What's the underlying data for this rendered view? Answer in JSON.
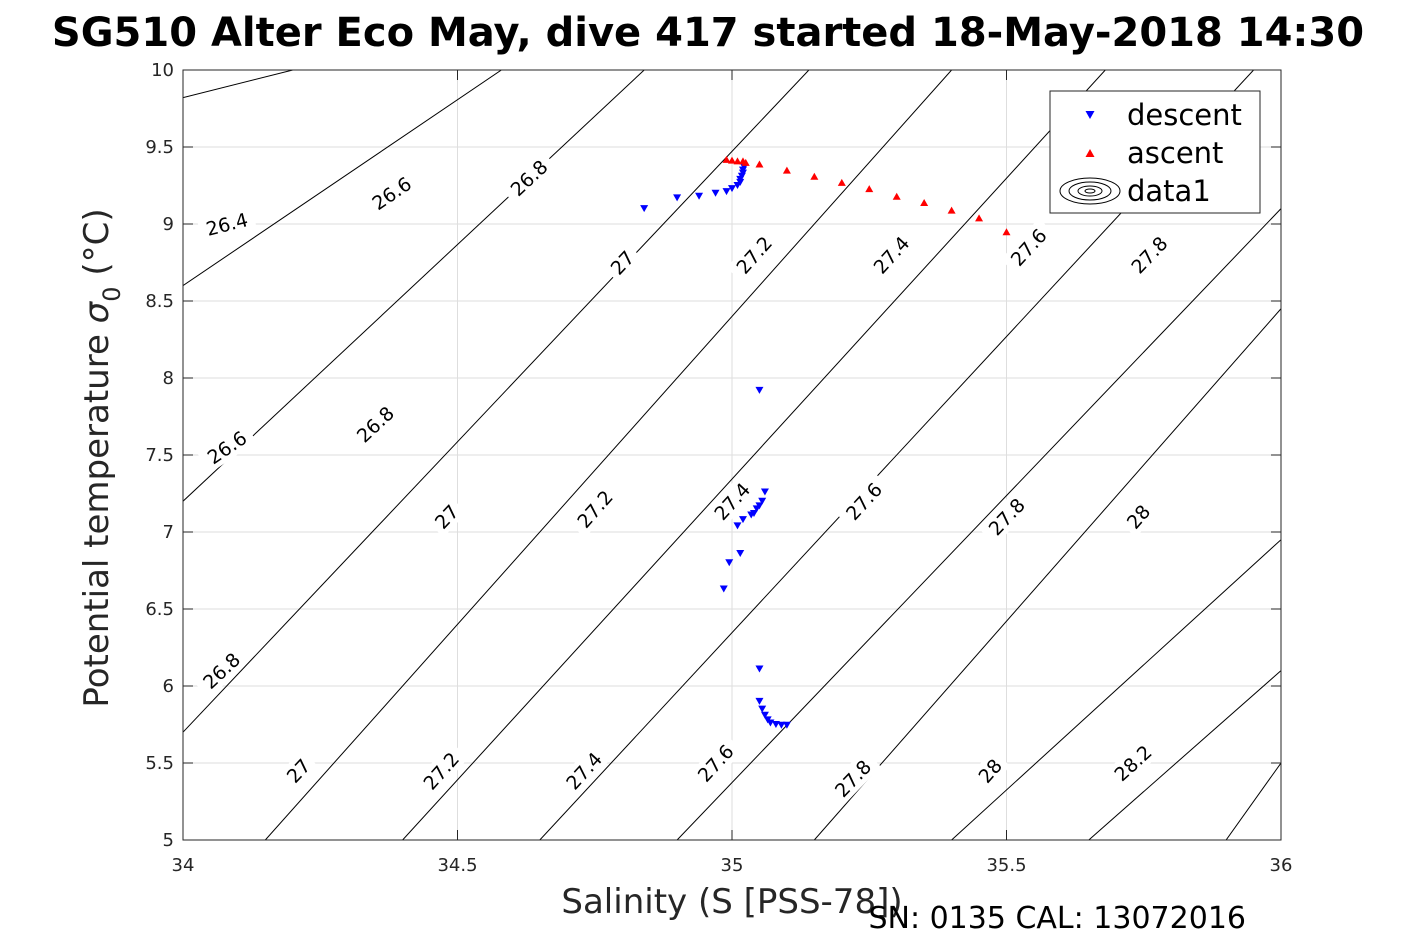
{
  "chart_data": {
    "type": "scatter",
    "title": "SG510 Alter Eco May, dive 417 started 18-May-2018 14:30",
    "xlabel": "Salinity (S [PSS-78])",
    "ylabel_main": "Potential temperature ",
    "ylabel_sigma": "σ",
    "ylabel_sub": "0",
    "ylabel_unit": " (°C)",
    "footer": "SN: 0135  CAL: 13072016",
    "xlim": [
      34,
      36
    ],
    "ylim": [
      5,
      10
    ],
    "xticks": [
      "34",
      "34.5",
      "35",
      "35.5",
      "36"
    ],
    "yticks": [
      "5",
      "5.5",
      "6",
      "6.5",
      "7",
      "7.5",
      "8",
      "8.5",
      "9",
      "9.5",
      "10"
    ],
    "grid": true,
    "legend": {
      "placement": "top-right",
      "entries": [
        {
          "label": "descent",
          "color": "#0000ff",
          "marker": "down-triangle"
        },
        {
          "label": "ascent",
          "color": "#ff0000",
          "marker": "up-triangle"
        },
        {
          "label": "data1",
          "color": "#000000",
          "marker": "contour"
        }
      ]
    },
    "contours": [
      {
        "label": "26.4",
        "points": [
          [
            34.0,
            9.82
          ],
          [
            34.2,
            10.0
          ]
        ],
        "labels": [
          [
            34.08,
            9.0
          ]
        ]
      },
      {
        "label": "26.6",
        "points": [
          [
            34.0,
            8.6
          ],
          [
            34.58,
            10.0
          ]
        ],
        "labels": [
          [
            34.38,
            9.2
          ],
          [
            34.08,
            7.55
          ]
        ]
      },
      {
        "label": "26.8",
        "points": [
          [
            34.0,
            7.2
          ],
          [
            34.84,
            10.0
          ]
        ],
        "labels": [
          [
            34.63,
            9.3
          ],
          [
            34.35,
            7.7
          ],
          [
            34.07,
            6.1
          ]
        ]
      },
      {
        "label": "27",
        "points": [
          [
            34.0,
            5.7
          ],
          [
            35.14,
            10.0
          ]
        ],
        "labels": [
          [
            34.8,
            8.75
          ],
          [
            34.48,
            7.1
          ],
          [
            34.21,
            5.45
          ]
        ]
      },
      {
        "label": "27.2",
        "points": [
          [
            34.15,
            5.0
          ],
          [
            35.4,
            10.0
          ]
        ],
        "labels": [
          [
            35.04,
            8.8
          ],
          [
            34.75,
            7.15
          ],
          [
            34.47,
            5.45
          ]
        ]
      },
      {
        "label": "27.4",
        "points": [
          [
            34.4,
            5.0
          ],
          [
            35.68,
            10.0
          ]
        ],
        "labels": [
          [
            35.29,
            8.8
          ],
          [
            35.0,
            7.2
          ],
          [
            34.73,
            5.45
          ]
        ]
      },
      {
        "label": "27.6",
        "points": [
          [
            34.65,
            5.0
          ],
          [
            35.95,
            10.0
          ]
        ],
        "labels": [
          [
            35.54,
            8.85
          ],
          [
            35.24,
            7.2
          ],
          [
            34.97,
            5.5
          ]
        ]
      },
      {
        "label": "27.8",
        "points": [
          [
            34.9,
            5.0
          ],
          [
            36.0,
            9.1
          ]
        ],
        "labels": [
          [
            35.76,
            8.8
          ],
          [
            35.5,
            7.1
          ],
          [
            35.22,
            5.4
          ]
        ]
      },
      {
        "label": "28",
        "points": [
          [
            35.15,
            5.0
          ],
          [
            36.0,
            8.45
          ]
        ],
        "labels": [
          [
            35.74,
            7.1
          ],
          [
            35.47,
            5.45
          ]
        ]
      },
      {
        "label": "28.2",
        "points": [
          [
            35.4,
            5.0
          ],
          [
            36.0,
            6.95
          ]
        ],
        "labels": [
          [
            35.73,
            5.5
          ]
        ]
      },
      {
        "label": "",
        "points": [
          [
            35.65,
            5.0
          ],
          [
            36.0,
            6.1
          ]
        ],
        "labels": []
      },
      {
        "label": "",
        "points": [
          [
            35.9,
            5.0
          ],
          [
            36.0,
            5.5
          ]
        ],
        "labels": []
      }
    ],
    "series": [
      {
        "name": "descent",
        "color": "#0000ff",
        "marker": "down-triangle",
        "points": [
          [
            34.84,
            9.1
          ],
          [
            34.9,
            9.17
          ],
          [
            34.94,
            9.18
          ],
          [
            34.97,
            9.2
          ],
          [
            34.99,
            9.21
          ],
          [
            35.0,
            9.23
          ],
          [
            35.01,
            9.25
          ],
          [
            35.015,
            9.27
          ],
          [
            35.015,
            9.29
          ],
          [
            35.018,
            9.31
          ],
          [
            35.02,
            9.33
          ],
          [
            35.02,
            9.35
          ],
          [
            35.022,
            9.37
          ],
          [
            35.05,
            7.92
          ],
          [
            35.06,
            7.26
          ],
          [
            35.055,
            7.2
          ],
          [
            35.05,
            7.17
          ],
          [
            35.045,
            7.15
          ],
          [
            35.04,
            7.12
          ],
          [
            35.035,
            7.11
          ],
          [
            35.02,
            7.08
          ],
          [
            35.01,
            7.04
          ],
          [
            35.015,
            6.86
          ],
          [
            34.995,
            6.8
          ],
          [
            34.985,
            6.63
          ],
          [
            35.05,
            6.11
          ],
          [
            35.05,
            5.9
          ],
          [
            35.055,
            5.85
          ],
          [
            35.06,
            5.81
          ],
          [
            35.065,
            5.78
          ],
          [
            35.07,
            5.76
          ],
          [
            35.08,
            5.75
          ],
          [
            35.09,
            5.745
          ],
          [
            35.1,
            5.745
          ]
        ]
      },
      {
        "name": "ascent",
        "color": "#ff0000",
        "marker": "up-triangle",
        "points": [
          [
            34.99,
            9.42
          ],
          [
            35.0,
            9.415
          ],
          [
            35.01,
            9.41
          ],
          [
            35.02,
            9.41
          ],
          [
            35.025,
            9.4
          ],
          [
            35.05,
            9.39
          ],
          [
            35.1,
            9.35
          ],
          [
            35.15,
            9.31
          ],
          [
            35.2,
            9.27
          ],
          [
            35.25,
            9.23
          ],
          [
            35.3,
            9.18
          ],
          [
            35.35,
            9.14
          ],
          [
            35.4,
            9.09
          ],
          [
            35.45,
            9.04
          ],
          [
            35.5,
            8.95
          ]
        ]
      }
    ]
  }
}
